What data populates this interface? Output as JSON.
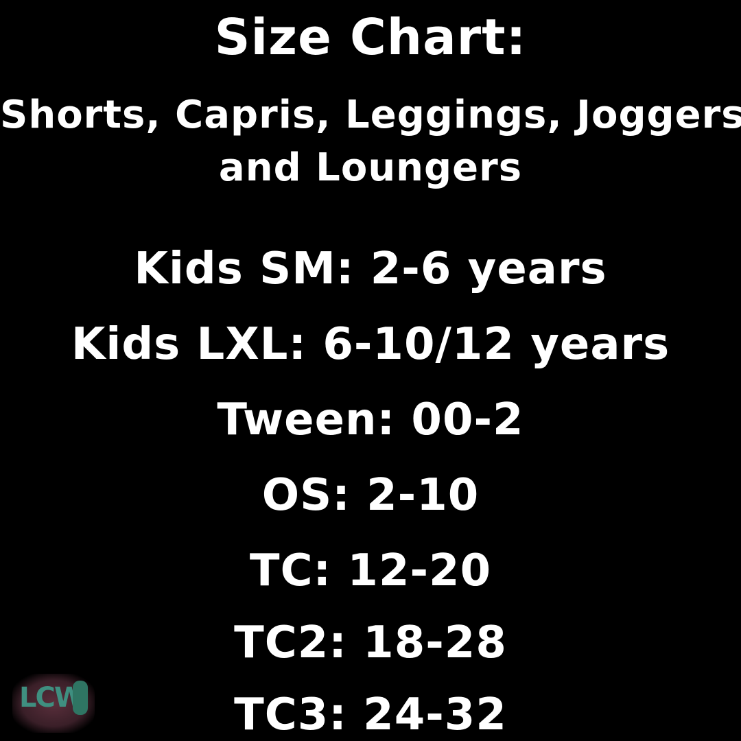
{
  "title": "Size Chart:",
  "subtitle_line1": "Shorts, Capris, Leggings, Joggers",
  "subtitle_line2": "and Loungers",
  "sizes": [
    "Kids SM: 2-6 years",
    "Kids LXL: 6-10/12 years",
    "Tween: 00-2",
    "OS: 2-10",
    "TC: 12-20",
    "TC2: 18-28",
    "TC3: 24-32"
  ],
  "logo": {
    "text": "LCW",
    "colors": {
      "text": "#3f8f80",
      "background": "#5a2f3c"
    }
  },
  "colors": {
    "background": "#000000",
    "text": "#ffffff"
  }
}
